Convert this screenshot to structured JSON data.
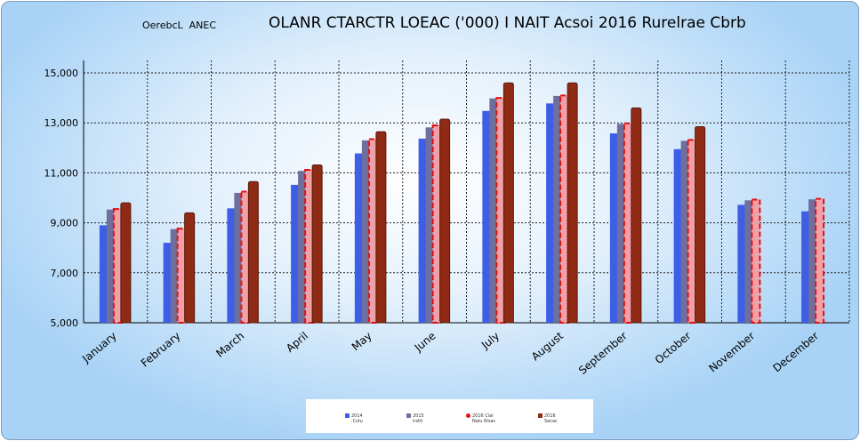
{
  "header": {
    "top_left": "OerebcL  ANEC",
    "title": "OLANR CTARCTR LOEAC ('000) I NAIT Acsoi 2016 Rurelrae Cbrb"
  },
  "chart_data": {
    "type": "bar",
    "title": "OLANR CTARCTR LOEAC ('000) I NAIT Acsoi 2016 Rurelrae Cbrb",
    "categories": [
      "January",
      "February",
      "March",
      "April",
      "May",
      "June",
      "July",
      "August",
      "September",
      "October",
      "November",
      "December"
    ],
    "ylim": [
      5000,
      15500
    ],
    "yticks": [
      "5,000",
      "7,000",
      "9,000",
      "11,000",
      "13,000",
      "15,000"
    ],
    "ytick_values": [
      5000,
      7000,
      9000,
      11000,
      13000,
      15000
    ],
    "grid": true,
    "legend_position": "bottom",
    "series": [
      {
        "name": "2014 ·Cstu",
        "color": "#3d5ee6",
        "values": [
          8900,
          8200,
          9580,
          10520,
          11780,
          12370,
          13480,
          13780,
          12580,
          11950,
          9720,
          9460
        ]
      },
      {
        "name": "2015 lrstit",
        "color": "#6e6f9c",
        "values": [
          9530,
          8750,
          10200,
          11080,
          12300,
          12820,
          13980,
          14080,
          12960,
          12280,
          9900,
          9940
        ]
      },
      {
        "name": "2016 Clai Nalu Rlsac",
        "color": "#f2a0a8",
        "values": [
          9550,
          8770,
          10250,
          11120,
          12350,
          12900,
          14000,
          14100,
          12980,
          12320,
          9930,
          9960
        ]
      },
      {
        "name": "2016 Sacac",
        "color": "#8f2a14",
        "values": [
          9800,
          9400,
          10650,
          11320,
          12650,
          13150,
          14600,
          14600,
          13600,
          12850,
          null,
          null
        ]
      }
    ]
  },
  "legend": [
    {
      "line1": "2014",
      "line2": "·Cstu",
      "color": "#3d5ee6"
    },
    {
      "line1": "2015",
      "line2": "lrstit",
      "color": "#6e6f9c"
    },
    {
      "line1": "2016 Clai",
      "line2": "Nalu Rlsac",
      "color": "#e41010"
    },
    {
      "line1": "2016",
      "line2": "Sacac",
      "color": "#8f2a14"
    }
  ]
}
